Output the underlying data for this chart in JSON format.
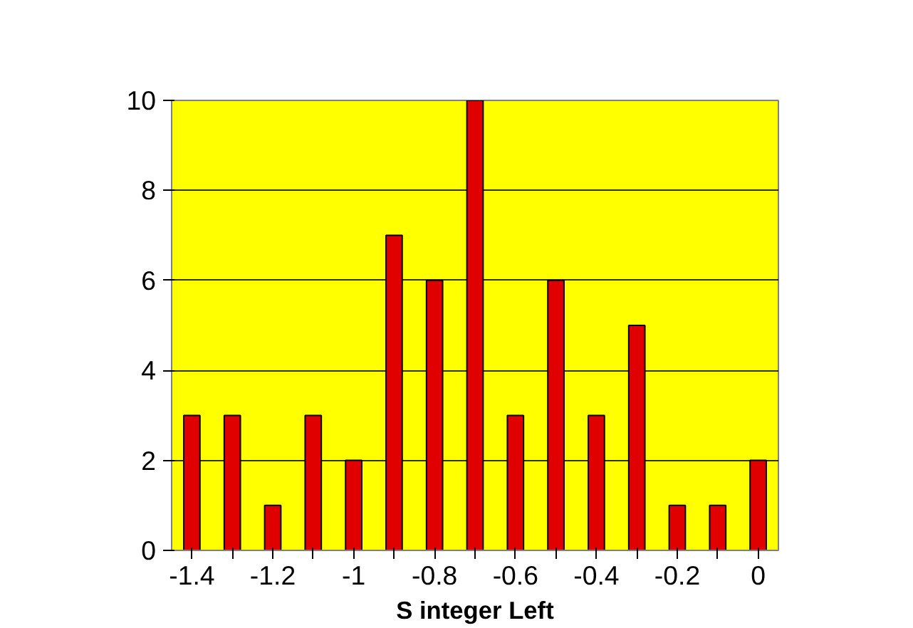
{
  "chart_data": {
    "type": "bar",
    "xlabel": "S integer Left",
    "categories": [
      "-1.4",
      null,
      "-1.2",
      null,
      "-1",
      null,
      "-0.8",
      null,
      "-0.6",
      null,
      "-0.4",
      null,
      "-0.2",
      null,
      "0"
    ],
    "values": [
      3,
      3,
      1,
      3,
      2,
      7,
      6,
      10,
      3,
      6,
      3,
      5,
      1,
      1,
      2
    ],
    "color": "#e00000",
    "ylim": [
      0,
      10
    ],
    "yticks": [
      0,
      2,
      4,
      6,
      8,
      10
    ],
    "grid": "y"
  }
}
